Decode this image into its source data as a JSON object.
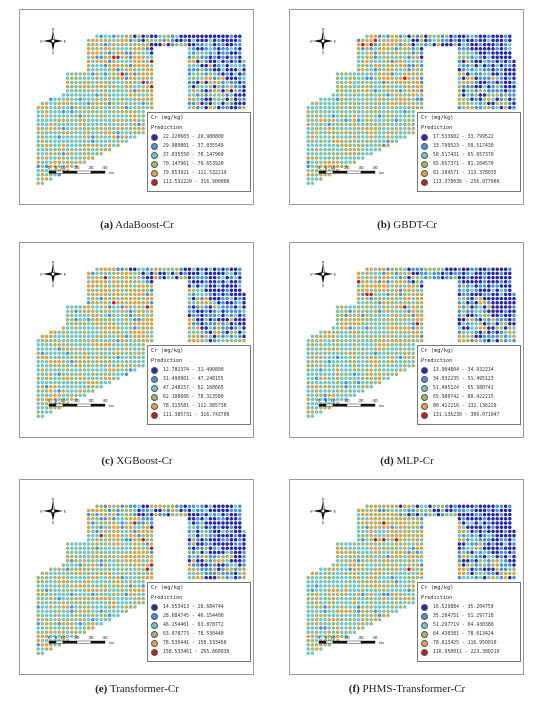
{
  "compass": {
    "n": "N",
    "s": "S",
    "e": "E",
    "w": "W"
  },
  "scalebar": {
    "ticks": [
      "0",
      "5",
      "10",
      "20",
      "30",
      "40"
    ],
    "unit": "km"
  },
  "legend_title": "Cr (mg/kg)",
  "legend_sub": "Prediction",
  "colors": [
    "#2a2aa8",
    "#4a93d6",
    "#74c6c2",
    "#a6b56a",
    "#e0a14a",
    "#c0201c"
  ],
  "panels": [
    {
      "label": "(a)",
      "name": "AdaBoost-Cr",
      "ranges": [
        "22.220603 - 29.980800",
        "29.980801 - 37.035549",
        "37.035550 - 70.147960",
        "70.147961 - 79.653920",
        "79.653921 - 111.532219",
        "111.532220 - 316.900000"
      ]
    },
    {
      "label": "(b)",
      "name": "GBDT-Cr",
      "ranges": [
        "17.533602 - 33.799522",
        "33.799523 - 50.517430",
        "50.517431 - 65.657370",
        "65.657371 - 81.204570",
        "81.204571 - 113.378035",
        "113.378036 - 256.977900"
      ]
    },
    {
      "label": "(c)",
      "name": "XGBoost-Cr",
      "ranges": [
        "12.782374 - 31.490800",
        "31.490801 - 47.248155",
        "47.248157 - 62.108665",
        "62.108666 - 78.313580",
        "78.313581 - 111.385730",
        "111.385731 - 316.743700"
      ]
    },
    {
      "label": "(d)",
      "name": "MLP-Cr",
      "ranges": [
        "13.904804 - 34.932234",
        "34.932235 - 51.495123",
        "51.495124 - 65.980741",
        "65.980742 - 80.422215",
        "80.422216 - 131.136229",
        "131.136230 - 306.071047"
      ]
    },
    {
      "label": "(e)",
      "name": "Transformer-Cr",
      "ranges": [
        "14.553413 - 28.684744",
        "28.684745 - 46.154400",
        "46.154401 - 63.078772",
        "63.078773 - 78.530440",
        "78.530441 - 158.533460",
        "158.533461 - 265.868030"
      ]
    },
    {
      "label": "(f)",
      "name": "PHMS-Transformer-Cr",
      "ranges": [
        "16.529884 - 35.204750",
        "35.204751 - 51.297718",
        "51.297719 - 64.430380",
        "64.430381 - 78.613424",
        "78.613425 - 116.950010",
        "116.950011 - 223.380210"
      ]
    }
  ]
}
